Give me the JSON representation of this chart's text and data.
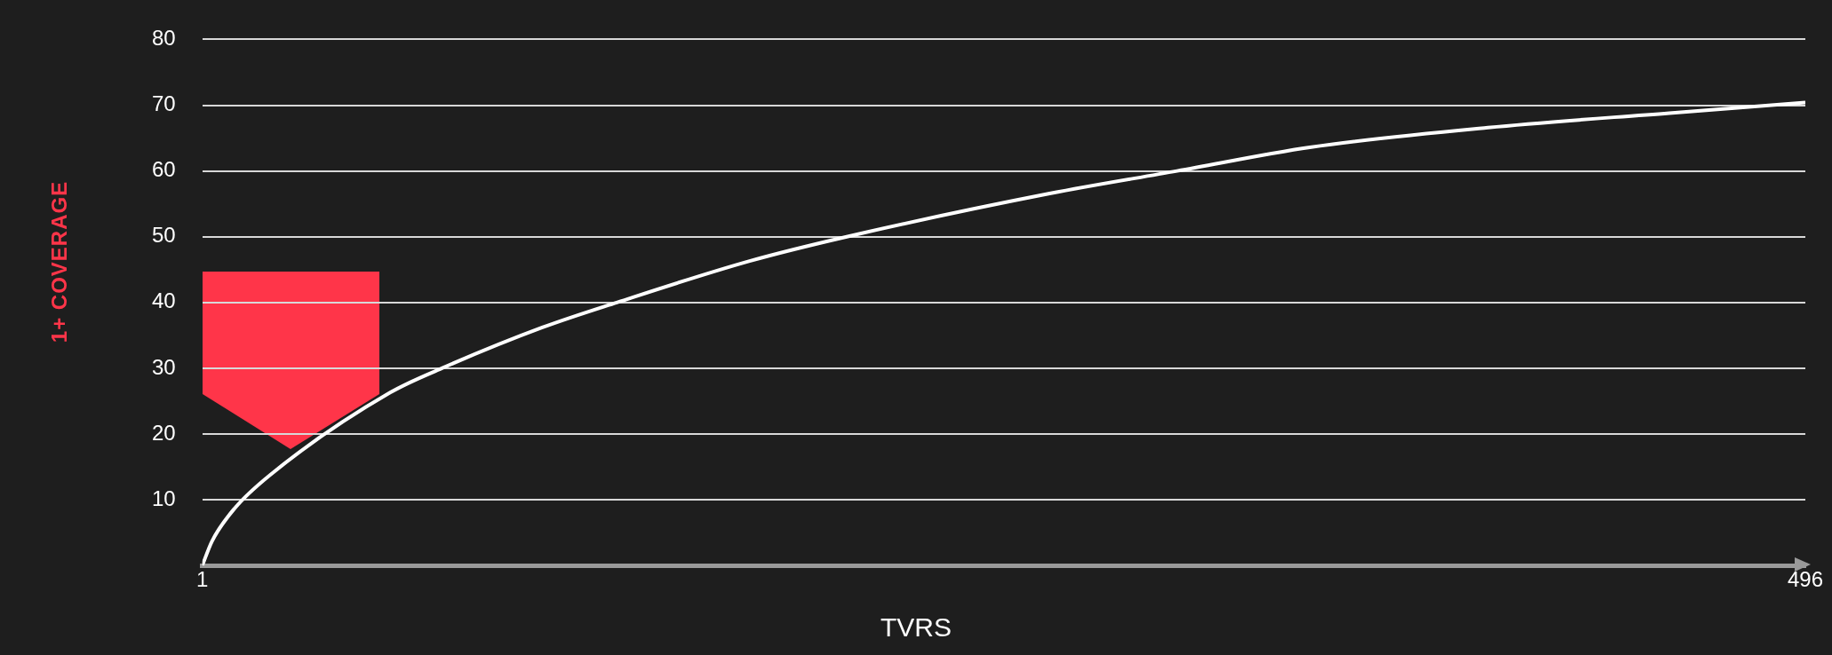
{
  "chart_data": {
    "type": "line",
    "xlabel": "TVRS",
    "ylabel": "1+ COVERAGE",
    "x": [
      1,
      4,
      11,
      22,
      59,
      75,
      106,
      129,
      170,
      200,
      263,
      302,
      343,
      398,
      454,
      496
    ],
    "series": [
      {
        "color": "#ffffff",
        "values": [
          0,
          3.7,
          8.7,
          13.8,
          26.3,
          30,
          36.2,
          40,
          46.3,
          50,
          56.6,
          60,
          63.6,
          66.6,
          68.8,
          70.4
        ]
      }
    ],
    "xlim": [
      1,
      496
    ],
    "xticks": [
      1,
      496
    ],
    "ylim": [
      0,
      80
    ],
    "yticks": [
      10,
      20,
      30,
      40,
      50,
      60,
      70,
      80
    ],
    "grid": "y",
    "legend": false,
    "marker": "none",
    "line_style": "solid"
  }
}
